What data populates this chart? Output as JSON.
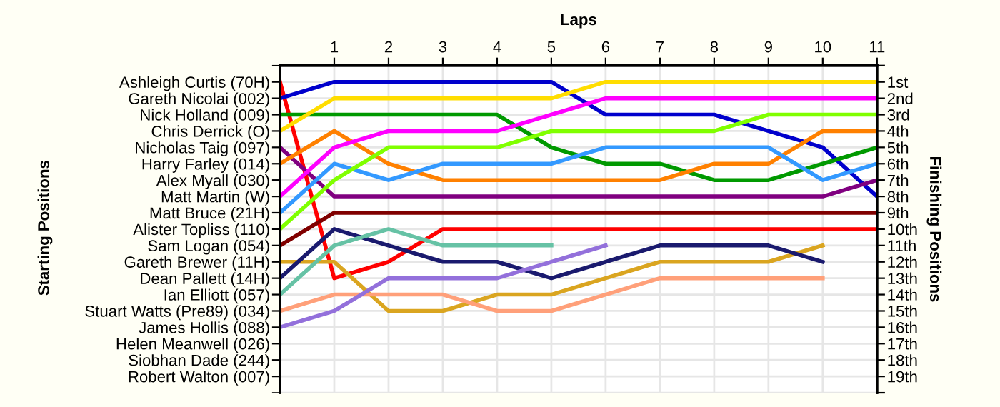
{
  "chart_data": {
    "type": "line",
    "xlabel": "Laps",
    "annotations": [
      "Starting Positions"
    ],
    "y2label": "Finishing Positions",
    "xlim": [
      0,
      11
    ],
    "xticks": [
      1,
      2,
      3,
      4,
      5,
      6,
      7,
      8,
      9,
      10,
      11
    ],
    "y_categories": [
      "Ashleigh Curtis (70H)",
      "Gareth Nicolai (002)",
      "Nick Holland (009)",
      "Chris Derrick (O)",
      "Nicholas Taig (097)",
      "Harry Farley (014)",
      "Alex Myall (030)",
      "Matt Martin (W)",
      "Matt Bruce (21H)",
      "Alister Topliss (110)",
      "Sam Logan (054)",
      "Gareth Brewer (11H)",
      "Dean Pallett (14H)",
      "Ian Elliott (057)",
      "Stuart Watts (Pre89) (034)",
      "James Hollis (088)",
      "Helen Meanwell (026)",
      "Siobhan Dade (244)",
      "Robert Walton (007)"
    ],
    "y2lim": [
      20,
      0
    ],
    "y2ticks": [
      {
        "value": 0,
        "label": null
      },
      {
        "value": 1,
        "label": "1st"
      },
      {
        "value": 2,
        "label": "2nd"
      },
      {
        "value": 3,
        "label": "3rd"
      },
      {
        "value": 4,
        "label": "4th"
      },
      {
        "value": 5,
        "label": "5th"
      },
      {
        "value": 6,
        "label": "6th"
      },
      {
        "value": 7,
        "label": "7th"
      },
      {
        "value": 8,
        "label": "8th"
      },
      {
        "value": 9,
        "label": "9th"
      },
      {
        "value": 10,
        "label": "10th"
      },
      {
        "value": 11,
        "label": "11th"
      },
      {
        "value": 12,
        "label": "12th"
      },
      {
        "value": 13,
        "label": "13th"
      },
      {
        "value": 14,
        "label": "14th"
      },
      {
        "value": 15,
        "label": "15th"
      },
      {
        "value": 16,
        "label": "16th"
      },
      {
        "value": 17,
        "label": "17th"
      },
      {
        "value": 18,
        "label": "18th"
      },
      {
        "value": 19,
        "label": "19th"
      },
      {
        "value": 20,
        "label": null
      }
    ],
    "grid": true,
    "marker": "none",
    "line_style": "solid",
    "series": [
      {
        "axis": "y2",
        "color": "#ff0000",
        "x": [
          0,
          1,
          2,
          3,
          4,
          5,
          6,
          7,
          8,
          9,
          10,
          11
        ],
        "values": [
          1,
          13,
          12,
          10,
          10,
          10,
          10,
          10,
          10,
          10,
          10,
          10
        ]
      },
      {
        "axis": "y2",
        "color": "#0000cc",
        "x": [
          0,
          1,
          2,
          3,
          4,
          5,
          6,
          7,
          8,
          9,
          10,
          11
        ],
        "values": [
          2,
          1,
          1,
          1,
          1,
          1,
          3,
          3,
          3,
          4,
          5,
          8
        ]
      },
      {
        "axis": "y2",
        "color": "#009900",
        "x": [
          0,
          1,
          2,
          3,
          4,
          5,
          6,
          7,
          8,
          9,
          10,
          11
        ],
        "values": [
          3,
          3,
          3,
          3,
          3,
          5,
          6,
          6,
          7,
          7,
          6,
          5
        ]
      },
      {
        "axis": "y2",
        "color": "#ffdd00",
        "x": [
          0,
          1,
          2,
          3,
          4,
          5,
          6,
          7,
          8,
          9,
          10,
          11
        ],
        "values": [
          4,
          2,
          2,
          2,
          2,
          2,
          1,
          1,
          1,
          1,
          1,
          1
        ]
      },
      {
        "axis": "y2",
        "color": "#800080",
        "x": [
          0,
          1,
          2,
          3,
          4,
          5,
          6,
          7,
          8,
          9,
          10,
          11
        ],
        "values": [
          5,
          8,
          8,
          8,
          8,
          8,
          8,
          8,
          8,
          8,
          8,
          7
        ]
      },
      {
        "axis": "y2",
        "color": "#ff8000",
        "x": [
          0,
          1,
          2,
          3,
          4,
          5,
          6,
          7,
          8,
          9,
          10,
          11
        ],
        "values": [
          6,
          4,
          6,
          7,
          7,
          7,
          7,
          7,
          6,
          6,
          4,
          4
        ]
      },
      {
        "axis": "y2",
        "color": "#ff00ff",
        "x": [
          0,
          1,
          2,
          3,
          4,
          5,
          6,
          7,
          8,
          9,
          10,
          11
        ],
        "values": [
          8,
          5,
          4,
          4,
          4,
          3,
          2,
          2,
          2,
          2,
          2,
          2
        ]
      },
      {
        "axis": "y2",
        "color": "#3399ff",
        "x": [
          0,
          1,
          2,
          3,
          4,
          5,
          6,
          7,
          8,
          9,
          10,
          11
        ],
        "values": [
          9,
          6,
          7,
          6,
          6,
          6,
          5,
          5,
          5,
          5,
          7,
          6
        ]
      },
      {
        "axis": "y2",
        "color": "#80ff00",
        "x": [
          0,
          1,
          2,
          3,
          4,
          5,
          6,
          7,
          8,
          9,
          10,
          11
        ],
        "values": [
          10,
          7,
          5,
          5,
          5,
          4,
          4,
          4,
          4,
          3,
          3,
          3
        ]
      },
      {
        "axis": "y2",
        "color": "#800000",
        "x": [
          0,
          1,
          2,
          3,
          4,
          5,
          6,
          7,
          8,
          9,
          10,
          11
        ],
        "values": [
          11,
          9,
          9,
          9,
          9,
          9,
          9,
          9,
          9,
          9,
          9,
          9
        ]
      },
      {
        "axis": "y2",
        "color": "#daa520",
        "x": [
          0,
          1,
          2,
          3,
          4,
          5,
          6,
          7,
          8,
          9,
          10
        ],
        "values": [
          12,
          12,
          15,
          15,
          14,
          14,
          13,
          12,
          12,
          12,
          11
        ]
      },
      {
        "axis": "y2",
        "color": "#1a1a6e",
        "x": [
          0,
          1,
          2,
          3,
          4,
          5,
          6,
          7,
          8,
          9,
          10
        ],
        "values": [
          13,
          10,
          11,
          12,
          12,
          13,
          12,
          11,
          11,
          11,
          12
        ]
      },
      {
        "axis": "y2",
        "color": "#66c2a5",
        "x": [
          0,
          1,
          2,
          3,
          4,
          5
        ],
        "values": [
          14,
          11,
          10,
          11,
          11,
          11
        ]
      },
      {
        "axis": "y2",
        "color": "#ffa07a",
        "x": [
          0,
          1,
          2,
          3,
          4,
          5,
          6,
          7,
          8,
          9,
          10
        ],
        "values": [
          15,
          14,
          14,
          14,
          15,
          15,
          14,
          13,
          13,
          13,
          13
        ]
      },
      {
        "axis": "y2",
        "color": "#9370db",
        "x": [
          0,
          1,
          2,
          3,
          4,
          5,
          6
        ],
        "values": [
          16,
          15,
          13,
          13,
          13,
          12,
          11
        ]
      }
    ]
  }
}
